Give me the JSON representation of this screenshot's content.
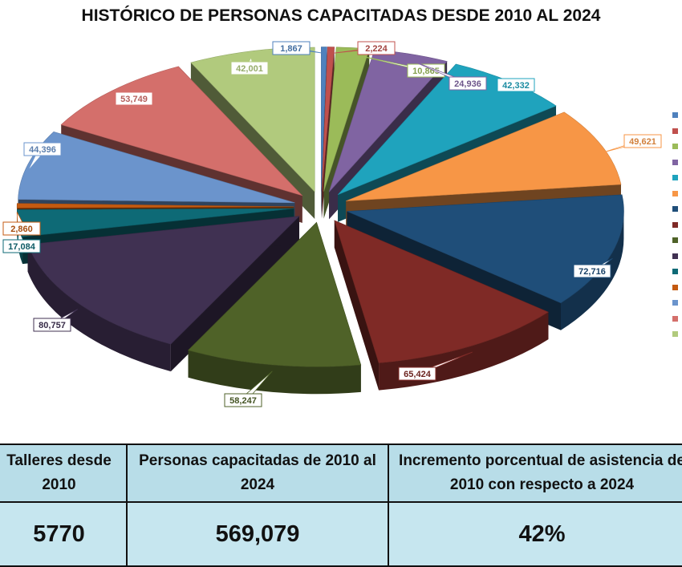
{
  "chart_data": {
    "type": "pie",
    "title": "HISTÓRICO DE PERSONAS CAPACITADAS DESDE 2010 AL 2024",
    "style": "3d-exploded",
    "legend_position": "right",
    "slices": [
      {
        "label": "1,867",
        "value": 1867,
        "color": "#4f81bd"
      },
      {
        "label": "2,224",
        "value": 2224,
        "color": "#c0504d"
      },
      {
        "label": "10,865",
        "value": 10865,
        "color": "#9bbb59"
      },
      {
        "label": "24,936",
        "value": 24936,
        "color": "#8064a2"
      },
      {
        "label": "42,332",
        "value": 42332,
        "color": "#1fa3bd"
      },
      {
        "label": "49,621",
        "value": 49621,
        "color": "#f79646"
      },
      {
        "label": "72,716",
        "value": 72716,
        "color": "#1f4e79"
      },
      {
        "label": "65,424",
        "value": 65424,
        "color": "#7f2a26"
      },
      {
        "label": "58,247",
        "value": 58247,
        "color": "#4f6228"
      },
      {
        "label": "80,757",
        "value": 80757,
        "color": "#403152"
      },
      {
        "label": "17,084",
        "value": 17084,
        "color": "#0e6a76"
      },
      {
        "label": "2,860",
        "value": 2860,
        "color": "#c45a10"
      },
      {
        "label": "44,396",
        "value": 44396,
        "color": "#6b94cc"
      },
      {
        "label": "53,749",
        "value": 53749,
        "color": "#d46f6b"
      },
      {
        "label": "42,001",
        "value": 42001,
        "color": "#b1ca7d"
      }
    ]
  },
  "summary_table": {
    "headers": [
      "Talleres desde 2010",
      "Personas capacitadas de 2010 al 2024",
      "Incremento porcentual de asistencia de 2010 con respecto a 2024"
    ],
    "values": [
      "5770",
      "569,079",
      "42%"
    ],
    "header_bg": "#b8dde8",
    "value_bg": "#c6e6ef"
  }
}
